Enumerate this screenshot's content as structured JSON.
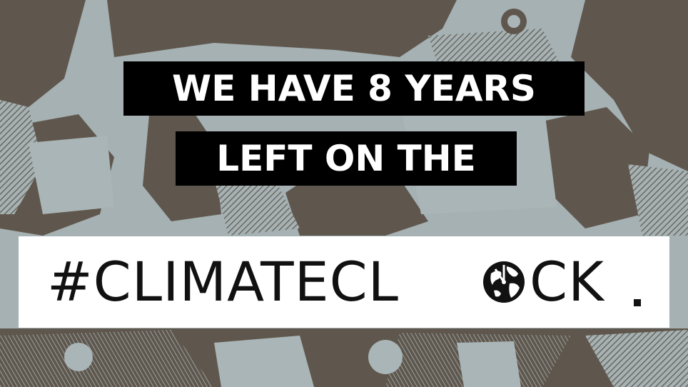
{
  "headline": {
    "line1": "WE HAVE 8 YEARS",
    "line2": "LEFT ON THE"
  },
  "brand": {
    "hashtag_part1": "#CLIMATECL",
    "hashtag_part2": "CK",
    "logo_icon": "globe-clock-icon"
  },
  "colors": {
    "background_gray": "#a5b1b3",
    "photo_brown": "#5f574d",
    "headline_bg": "#000000",
    "headline_text": "#ffffff",
    "brand_bg": "#ffffff",
    "brand_text": "#111111"
  }
}
